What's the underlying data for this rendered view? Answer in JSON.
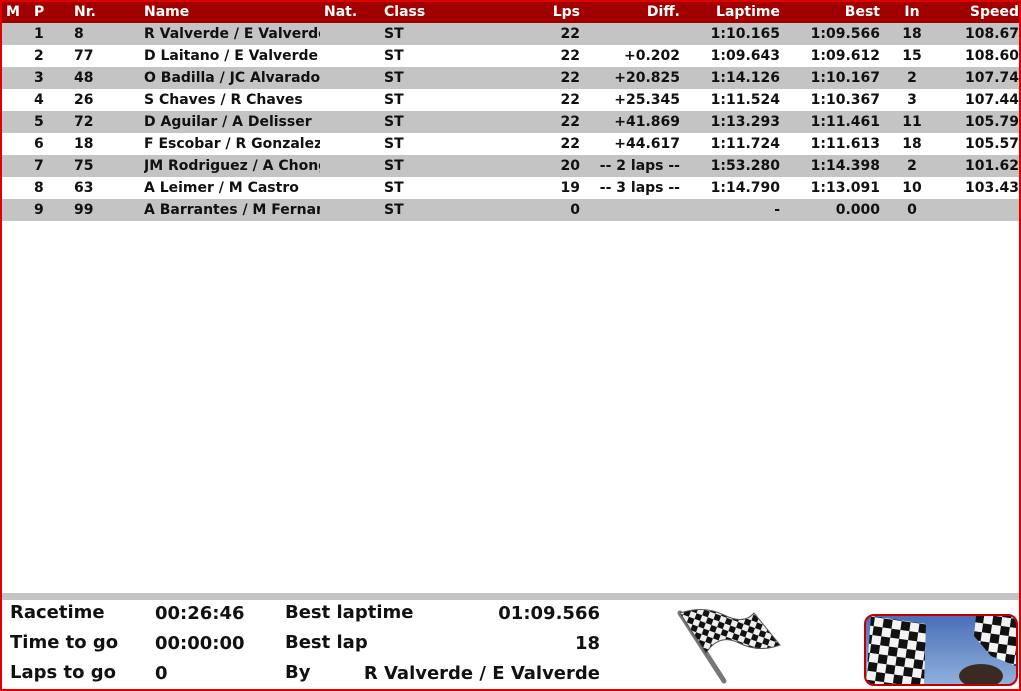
{
  "columns": {
    "m": "M",
    "p": "P",
    "nr": "Nr.",
    "name": "Name",
    "nat": "Nat.",
    "class": "Class",
    "lps": "Lps",
    "diff": "Diff.",
    "laptime": "Laptime",
    "best": "Best",
    "in": "In",
    "speed": "Speed"
  },
  "colors": {
    "header_bg": "#a00000",
    "row_alt": "#c4c4c4",
    "marker_green": "#1ec81e",
    "border": "#e00000"
  },
  "rows": [
    {
      "marker": true,
      "p": "1",
      "nr": "8",
      "name": "R Valverde / E Valverde",
      "nat": "",
      "class": "ST",
      "lps": "22",
      "diff": "",
      "laptime": "1:10.165",
      "best": "1:09.566",
      "in": "18",
      "speed": "108.67"
    },
    {
      "marker": true,
      "p": "2",
      "nr": "77",
      "name": "D Laitano /  E Valverde",
      "nat": "",
      "class": "ST",
      "lps": "22",
      "diff": "+0.202",
      "laptime": "1:09.643",
      "best": "1:09.612",
      "in": "15",
      "speed": "108.60"
    },
    {
      "marker": true,
      "p": "3",
      "nr": "48",
      "name": "O Badilla / JC Alvarado",
      "nat": "",
      "class": "ST",
      "lps": "22",
      "diff": "+20.825",
      "laptime": "1:14.126",
      "best": "1:10.167",
      "in": "2",
      "speed": "107.74"
    },
    {
      "marker": true,
      "p": "4",
      "nr": "26",
      "name": "S Chaves / R Chaves",
      "nat": "",
      "class": "ST",
      "lps": "22",
      "diff": "+25.345",
      "laptime": "1:11.524",
      "best": "1:10.367",
      "in": "3",
      "speed": "107.44"
    },
    {
      "marker": true,
      "p": "5",
      "nr": "72",
      "name": "D Aguilar / A Delisser",
      "nat": "",
      "class": "ST",
      "lps": "22",
      "diff": "+41.869",
      "laptime": "1:13.293",
      "best": "1:11.461",
      "in": "11",
      "speed": "105.79"
    },
    {
      "marker": true,
      "p": "6",
      "nr": "18",
      "name": "F Escobar / R Gonzalez",
      "nat": "",
      "class": "ST",
      "lps": "22",
      "diff": "+44.617",
      "laptime": "1:11.724",
      "best": "1:11.613",
      "in": "18",
      "speed": "105.57"
    },
    {
      "marker": false,
      "p": "7",
      "nr": "75",
      "name": "JM Rodriguez / A Chong",
      "nat": "",
      "class": "ST",
      "lps": "20",
      "diff": "-- 2 laps --",
      "laptime": "1:53.280",
      "best": "1:14.398",
      "in": "2",
      "speed": "101.62"
    },
    {
      "marker": true,
      "p": "8",
      "nr": "63",
      "name": "A Leimer / M Castro",
      "nat": "",
      "class": "ST",
      "lps": "19",
      "diff": "-- 3 laps --",
      "laptime": "1:14.790",
      "best": "1:13.091",
      "in": "10",
      "speed": "103.43"
    },
    {
      "marker": false,
      "p": "9",
      "nr": "99",
      "name": "A Barrantes / M Fernandez",
      "nat": "",
      "class": "ST",
      "lps": "0",
      "diff": "",
      "laptime": "-",
      "best": "0.000",
      "in": "0",
      "speed": ""
    }
  ],
  "footer": {
    "racetime_label": "Racetime",
    "racetime": "00:26:46",
    "timetogo_label": "Time to go",
    "timetogo": "00:00:00",
    "lapstogo_label": "Laps to go",
    "lapstogo": "0",
    "bestlaptime_label": "Best laptime",
    "bestlaptime": "01:09.566",
    "bestlap_label": "Best lap",
    "bestlap": "18",
    "by_label": "By",
    "by": "R Valverde / E Valverde"
  },
  "icons": {
    "flag": "checkered-flag-icon",
    "photo": "checkered-flags-photo"
  }
}
